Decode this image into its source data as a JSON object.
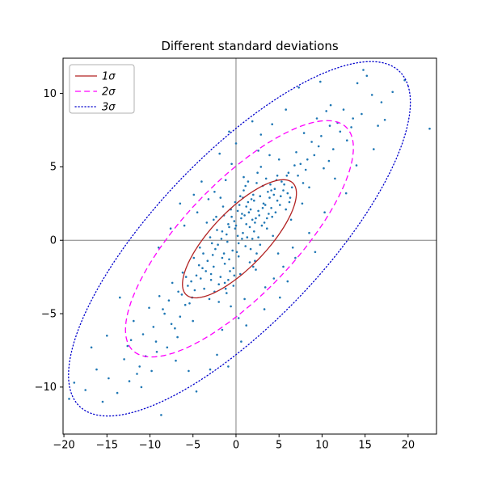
{
  "chart_data": {
    "type": "scatter",
    "title": "Different standard deviations",
    "xlabel": "",
    "ylabel": "",
    "xlim": [
      -20.1,
      23.3
    ],
    "ylim": [
      -13.2,
      12.4
    ],
    "xtick_values": [
      -20,
      -15,
      -10,
      -5,
      0,
      5,
      10,
      15,
      20
    ],
    "xtick_labels": [
      "−20",
      "−15",
      "−10",
      "−5",
      "0",
      "5",
      "10",
      "15",
      "20"
    ],
    "ytick_values": [
      -10,
      -5,
      0,
      5,
      10
    ],
    "ytick_labels": [
      "−10",
      "−5",
      "0",
      "5",
      "10"
    ],
    "grid": false,
    "frame_color": "#000000",
    "crosshair": {
      "x": 0,
      "y": 0,
      "color": "#808080"
    },
    "scatter": {
      "color": "#1f77b4",
      "marker_size": 1.3,
      "points": [
        [
          0.2,
          0.3
        ],
        [
          1.1,
          -0.4
        ],
        [
          -0.8,
          0.9
        ],
        [
          2.3,
          1.5
        ],
        [
          -1.6,
          -1.2
        ],
        [
          0.7,
          1.8
        ],
        [
          -2.4,
          -0.6
        ],
        [
          3.1,
          2.2
        ],
        [
          1.9,
          0.1
        ],
        [
          -0.3,
          -1.9
        ],
        [
          4.2,
          1.6
        ],
        [
          -3.5,
          -2.1
        ],
        [
          2.8,
          3.0
        ],
        [
          -1.1,
          0.4
        ],
        [
          0.5,
          -2.3
        ],
        [
          5.1,
          2.4
        ],
        [
          -4.3,
          -1.7
        ],
        [
          3.6,
          0.8
        ],
        [
          -2.0,
          -3.0
        ],
        [
          1.4,
          2.6
        ],
        [
          6.0,
          3.2
        ],
        [
          -5.2,
          -2.8
        ],
        [
          4.5,
          3.5
        ],
        [
          -0.6,
          2.1
        ],
        [
          2.2,
          -1.4
        ],
        [
          -3.0,
          0.2
        ],
        [
          0.9,
          3.4
        ],
        [
          -1.8,
          -2.5
        ],
        [
          3.9,
          2.9
        ],
        [
          5.6,
          3.8
        ],
        [
          -4.8,
          -3.4
        ],
        [
          1.6,
          0.9
        ],
        [
          -0.2,
          1.3
        ],
        [
          2.6,
          2.0
        ],
        [
          -2.7,
          -1.0
        ],
        [
          0.1,
          -0.8
        ],
        [
          4.8,
          2.7
        ],
        [
          -3.8,
          -0.9
        ],
        [
          1.2,
          1.1
        ],
        [
          -1.4,
          1.7
        ],
        [
          3.3,
          1.2
        ],
        [
          -0.9,
          -2.7
        ],
        [
          2.0,
          3.1
        ],
        [
          -2.2,
          0.7
        ],
        [
          0.4,
          2.4
        ],
        [
          5.8,
          2.1
        ],
        [
          -5.6,
          -3.1
        ],
        [
          4.0,
          3.8
        ],
        [
          -1.0,
          -0.1
        ],
        [
          1.7,
          -0.6
        ],
        [
          0.8,
          0.5
        ],
        [
          -0.4,
          -0.7
        ],
        [
          1.5,
          1.9
        ],
        [
          -1.3,
          -1.6
        ],
        [
          2.1,
          0.6
        ],
        [
          -2.9,
          -2.3
        ],
        [
          3.0,
          1.0
        ],
        [
          -0.1,
          0.8
        ],
        [
          0.3,
          -1.1
        ],
        [
          1.8,
          2.8
        ],
        [
          -1.7,
          0.1
        ],
        [
          2.4,
          -0.9
        ],
        [
          -3.3,
          -1.4
        ],
        [
          4.1,
          2.2
        ],
        [
          -2.1,
          -0.3
        ],
        [
          0.6,
          1.5
        ],
        [
          -0.7,
          -2.1
        ],
        [
          1.3,
          0.2
        ],
        [
          -1.5,
          2.3
        ],
        [
          3.7,
          3.3
        ],
        [
          -4.1,
          -2.6
        ],
        [
          2.7,
          1.7
        ],
        [
          -0.9,
          1.1
        ],
        [
          0.2,
          2.0
        ],
        [
          -2.6,
          -1.8
        ],
        [
          4.6,
          1.9
        ],
        [
          -3.7,
          -3.3
        ],
        [
          1.1,
          3.7
        ],
        [
          -0.3,
          -3.1
        ],
        [
          3.2,
          2.5
        ],
        [
          5.3,
          4.0
        ],
        [
          -4.9,
          -1.2
        ],
        [
          2.3,
          -2.0
        ],
        [
          -1.1,
          -3.6
        ],
        [
          0.9,
          4.3
        ],
        [
          6.3,
          2.9
        ],
        [
          -5.4,
          -4.3
        ],
        [
          3.5,
          4.2
        ],
        [
          -2.3,
          1.6
        ],
        [
          1.6,
          -1.5
        ],
        [
          4.3,
          0.3
        ],
        [
          -3.1,
          -4.0
        ],
        [
          2.9,
          5.0
        ],
        [
          -0.6,
          -4.5
        ],
        [
          5.0,
          5.5
        ],
        [
          7.5,
          5.2
        ],
        [
          -6.7,
          -3.5
        ],
        [
          6.1,
          4.6
        ],
        [
          -5.0,
          -5.5
        ],
        [
          4.9,
          -0.9
        ],
        [
          0.0,
          1.0
        ],
        [
          1.2,
          2.3
        ],
        [
          -1.6,
          0.6
        ],
        [
          2.6,
          0.2
        ],
        [
          -0.8,
          -1.3
        ],
        [
          3.8,
          1.8
        ],
        [
          -2.8,
          -0.2
        ],
        [
          1.9,
          1.4
        ],
        [
          -0.2,
          -2.4
        ],
        [
          0.7,
          0.1
        ],
        [
          4.4,
          3.1
        ],
        [
          -3.9,
          -1.9
        ],
        [
          2.1,
          2.7
        ],
        [
          -1.3,
          -2.9
        ],
        [
          0.5,
          3.0
        ],
        [
          5.5,
          3.4
        ],
        [
          -4.6,
          -2.4
        ],
        [
          3.4,
          2.4
        ],
        [
          -2.5,
          -3.5
        ],
        [
          1.0,
          1.7
        ],
        [
          6.5,
          3.6
        ],
        [
          -5.8,
          -2.5
        ],
        [
          4.7,
          4.1
        ],
        [
          -0.5,
          1.6
        ],
        [
          2.8,
          -0.3
        ],
        [
          -3.4,
          1.2
        ],
        [
          1.4,
          4.0
        ],
        [
          -2.0,
          -4.2
        ],
        [
          4.1,
          3.4
        ],
        [
          5.9,
          4.4
        ],
        [
          -5.1,
          -3.9
        ],
        [
          2.2,
          1.2
        ],
        [
          -0.1,
          2.6
        ],
        [
          3.1,
          3.7
        ],
        [
          -2.9,
          -2.7
        ],
        [
          0.3,
          -0.2
        ],
        [
          5.2,
          3.0
        ],
        [
          -4.2,
          -0.5
        ],
        [
          1.7,
          2.1
        ],
        [
          -1.8,
          2.9
        ],
        [
          3.6,
          1.5
        ],
        [
          -1.2,
          -3.3
        ],
        [
          2.4,
          3.9
        ],
        [
          -2.6,
          1.4
        ],
        [
          0.8,
          2.9
        ],
        [
          6.2,
          2.6
        ],
        [
          -6.3,
          -3.7
        ],
        [
          4.8,
          4.4
        ],
        [
          -1.4,
          -0.9
        ],
        [
          2.0,
          -1.8
        ],
        [
          7.8,
          3.9
        ],
        [
          -7.5,
          -5.7
        ],
        [
          8.3,
          5.5
        ],
        [
          -8.5,
          -4.7
        ],
        [
          9.6,
          6.4
        ],
        [
          -9.3,
          -6.9
        ],
        [
          10.9,
          7.8
        ],
        [
          -10.5,
          -7.9
        ],
        [
          12.5,
          8.9
        ],
        [
          -11.5,
          -9.1
        ],
        [
          7.2,
          4.4
        ],
        [
          -7.8,
          -4.1
        ],
        [
          8.5,
          3.6
        ],
        [
          -6.5,
          -5.2
        ],
        [
          9.1,
          5.8
        ],
        [
          -8.9,
          -3.8
        ],
        [
          6.8,
          5.1
        ],
        [
          -9.6,
          -5.9
        ],
        [
          10.2,
          4.9
        ],
        [
          -10.8,
          -6.4
        ],
        [
          7.7,
          2.5
        ],
        [
          -7.1,
          -6.0
        ],
        [
          11.3,
          6.2
        ],
        [
          -11.9,
          -5.5
        ],
        [
          8.8,
          6.7
        ],
        [
          -6.2,
          -2.2
        ],
        [
          9.9,
          7.1
        ],
        [
          -12.6,
          -7.2
        ],
        [
          6.4,
          1.4
        ],
        [
          -8.3,
          -5.0
        ],
        [
          10.8,
          5.4
        ],
        [
          -9.2,
          -7.6
        ],
        [
          12.1,
          7.4
        ],
        [
          -10.1,
          -4.6
        ],
        [
          7.0,
          6.0
        ],
        [
          -5.9,
          -4.4
        ],
        [
          11.8,
          8.0
        ],
        [
          -13.0,
          -8.1
        ],
        [
          8.1,
          4.8
        ],
        [
          -7.4,
          -2.9
        ],
        [
          12.9,
          6.8
        ],
        [
          -11.2,
          -8.6
        ],
        [
          9.4,
          8.3
        ],
        [
          -6.8,
          -6.6
        ],
        [
          10.5,
          8.8
        ],
        [
          -12.2,
          -6.8
        ],
        [
          13.4,
          7.7
        ],
        [
          -9.8,
          -8.9
        ],
        [
          11.0,
          9.2
        ],
        [
          -8.0,
          -7.3
        ],
        [
          14.6,
          8.6
        ],
        [
          -14.8,
          -9.4
        ],
        [
          15.8,
          9.9
        ],
        [
          -16.2,
          -8.8
        ],
        [
          16.9,
          9.4
        ],
        [
          -17.5,
          -10.2
        ],
        [
          18.2,
          10.1
        ],
        [
          -18.8,
          -9.7
        ],
        [
          14.1,
          10.7
        ],
        [
          -15.5,
          -11.0
        ],
        [
          17.3,
          8.2
        ],
        [
          -19.4,
          -10.8
        ],
        [
          19.6,
          10.9
        ],
        [
          -13.8,
          -10.4
        ],
        [
          15.2,
          11.2
        ],
        [
          22.5,
          7.6
        ],
        [
          -8.7,
          -11.9
        ],
        [
          7.3,
          10.4
        ],
        [
          13.6,
          8.3
        ],
        [
          16.5,
          7.8
        ],
        [
          -4.6,
          -10.3
        ],
        [
          -0.9,
          -8.6
        ],
        [
          1.2,
          -5.8
        ],
        [
          -2.2,
          -7.8
        ],
        [
          3.3,
          -4.7
        ],
        [
          -5.5,
          -8.9
        ],
        [
          0.6,
          -6.9
        ],
        [
          -6.5,
          2.5
        ],
        [
          -9.0,
          -0.5
        ],
        [
          -7.6,
          0.8
        ],
        [
          -4.9,
          3.1
        ],
        [
          8.5,
          0.5
        ],
        [
          10.3,
          1.9
        ],
        [
          6.9,
          -1.2
        ],
        [
          9.2,
          -0.8
        ],
        [
          -0.5,
          5.2
        ],
        [
          1.0,
          -4.0
        ],
        [
          -1.9,
          5.9
        ],
        [
          0.0,
          6.6
        ],
        [
          2.9,
          7.2
        ],
        [
          -4.5,
          1.9
        ],
        [
          3.4,
          -3.2
        ],
        [
          -6.0,
          1.0
        ],
        [
          5.5,
          -1.8
        ],
        [
          -2.5,
          3.3
        ],
        [
          6.6,
          -0.5
        ],
        [
          -1.2,
          4.1
        ],
        [
          4.4,
          -2.6
        ],
        [
          -3.2,
          2.8
        ],
        [
          2.5,
          4.6
        ],
        [
          9.8,
          10.8
        ],
        [
          5.8,
          8.9
        ],
        [
          4.2,
          7.9
        ],
        [
          -3.0,
          -8.8
        ],
        [
          14.8,
          11.6
        ],
        [
          12.8,
          3.2
        ],
        [
          14.0,
          5.1
        ],
        [
          -13.5,
          -3.9
        ],
        [
          -15.0,
          -6.5
        ],
        [
          16.0,
          6.2
        ],
        [
          -16.8,
          -7.3
        ],
        [
          -11.0,
          -10.0
        ],
        [
          5.1,
          -3.9
        ],
        [
          0.3,
          -5.3
        ],
        [
          -1.6,
          -6.1
        ],
        [
          2.6,
          6.1
        ],
        [
          -0.8,
          7.4
        ],
        [
          1.9,
          8.1
        ],
        [
          -4.0,
          4.0
        ],
        [
          7.9,
          7.3
        ],
        [
          11.5,
          4.2
        ],
        [
          -12.4,
          -9.6
        ],
        [
          6.0,
          -2.8
        ],
        [
          -7.0,
          -8.2
        ],
        [
          3.9,
          5.8
        ]
      ]
    },
    "ellipses": {
      "center": [
        0.4,
        0.1
      ],
      "angle_deg": 28,
      "semi_axes": [
        7.4,
        2.3
      ],
      "levels": [
        {
          "n_std": 1,
          "label": "1σ",
          "color": "#b22222",
          "linestyle": "solid"
        },
        {
          "n_std": 2,
          "label": "2σ",
          "color": "#ff00ff",
          "linestyle": "dashed"
        },
        {
          "n_std": 3,
          "label": "3σ",
          "color": "#0000cc",
          "linestyle": "dotted"
        }
      ]
    },
    "legend": {
      "position": "upper left",
      "border_color": "#b0b0b0",
      "background": "#ffffff"
    }
  }
}
